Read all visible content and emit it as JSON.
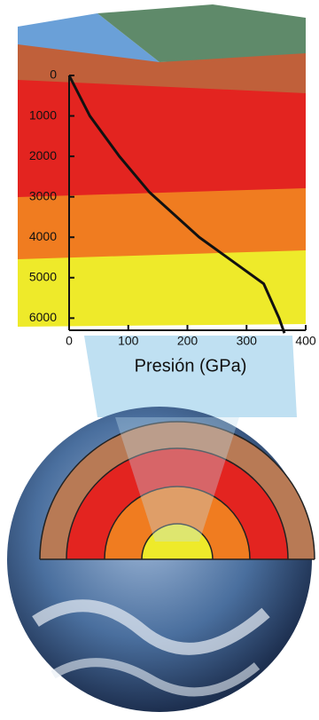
{
  "chart_data": {
    "type": "line",
    "x_label": "Presión (GPa)",
    "series": [
      {
        "color": "#111111",
        "x": [
          0,
          35,
          85,
          136,
          220,
          329,
          355,
          364
        ],
        "values": [
          0,
          1000,
          2000,
          2890,
          4000,
          5150,
          6000,
          6371
        ]
      }
    ],
    "xlim": [
      0,
      400
    ],
    "xticks": [
      0,
      100,
      200,
      300,
      400
    ],
    "ylim": [
      0,
      6300
    ],
    "yticks": [
      0,
      1000,
      2000,
      3000,
      4000,
      5000,
      6000
    ],
    "y_inverted": true
  }
}
